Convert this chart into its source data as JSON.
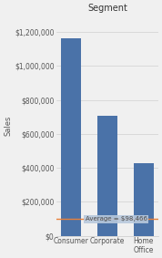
{
  "title": "Segment",
  "categories": [
    "Consumer",
    "Corporate",
    "Home\nOffice"
  ],
  "values": [
    1161000,
    706000,
    429000
  ],
  "bar_color": "#4a72a8",
  "ylabel": "Sales",
  "ylim": [
    0,
    1300000
  ],
  "yticks": [
    0,
    200000,
    400000,
    600000,
    800000,
    1000000,
    1200000
  ],
  "avg_value": 98466,
  "avg_label": "Average = $98,466",
  "avg_line_color": "#E8813A",
  "avg_label_bg": "#B8C8DC",
  "avg_label_text_color": "#4B4B4B",
  "grid_color": "#C8C8C8",
  "background_color": "#F0F0F0",
  "title_fontsize": 7,
  "axis_fontsize": 6,
  "tick_fontsize": 5.5,
  "avg_fontsize": 5
}
